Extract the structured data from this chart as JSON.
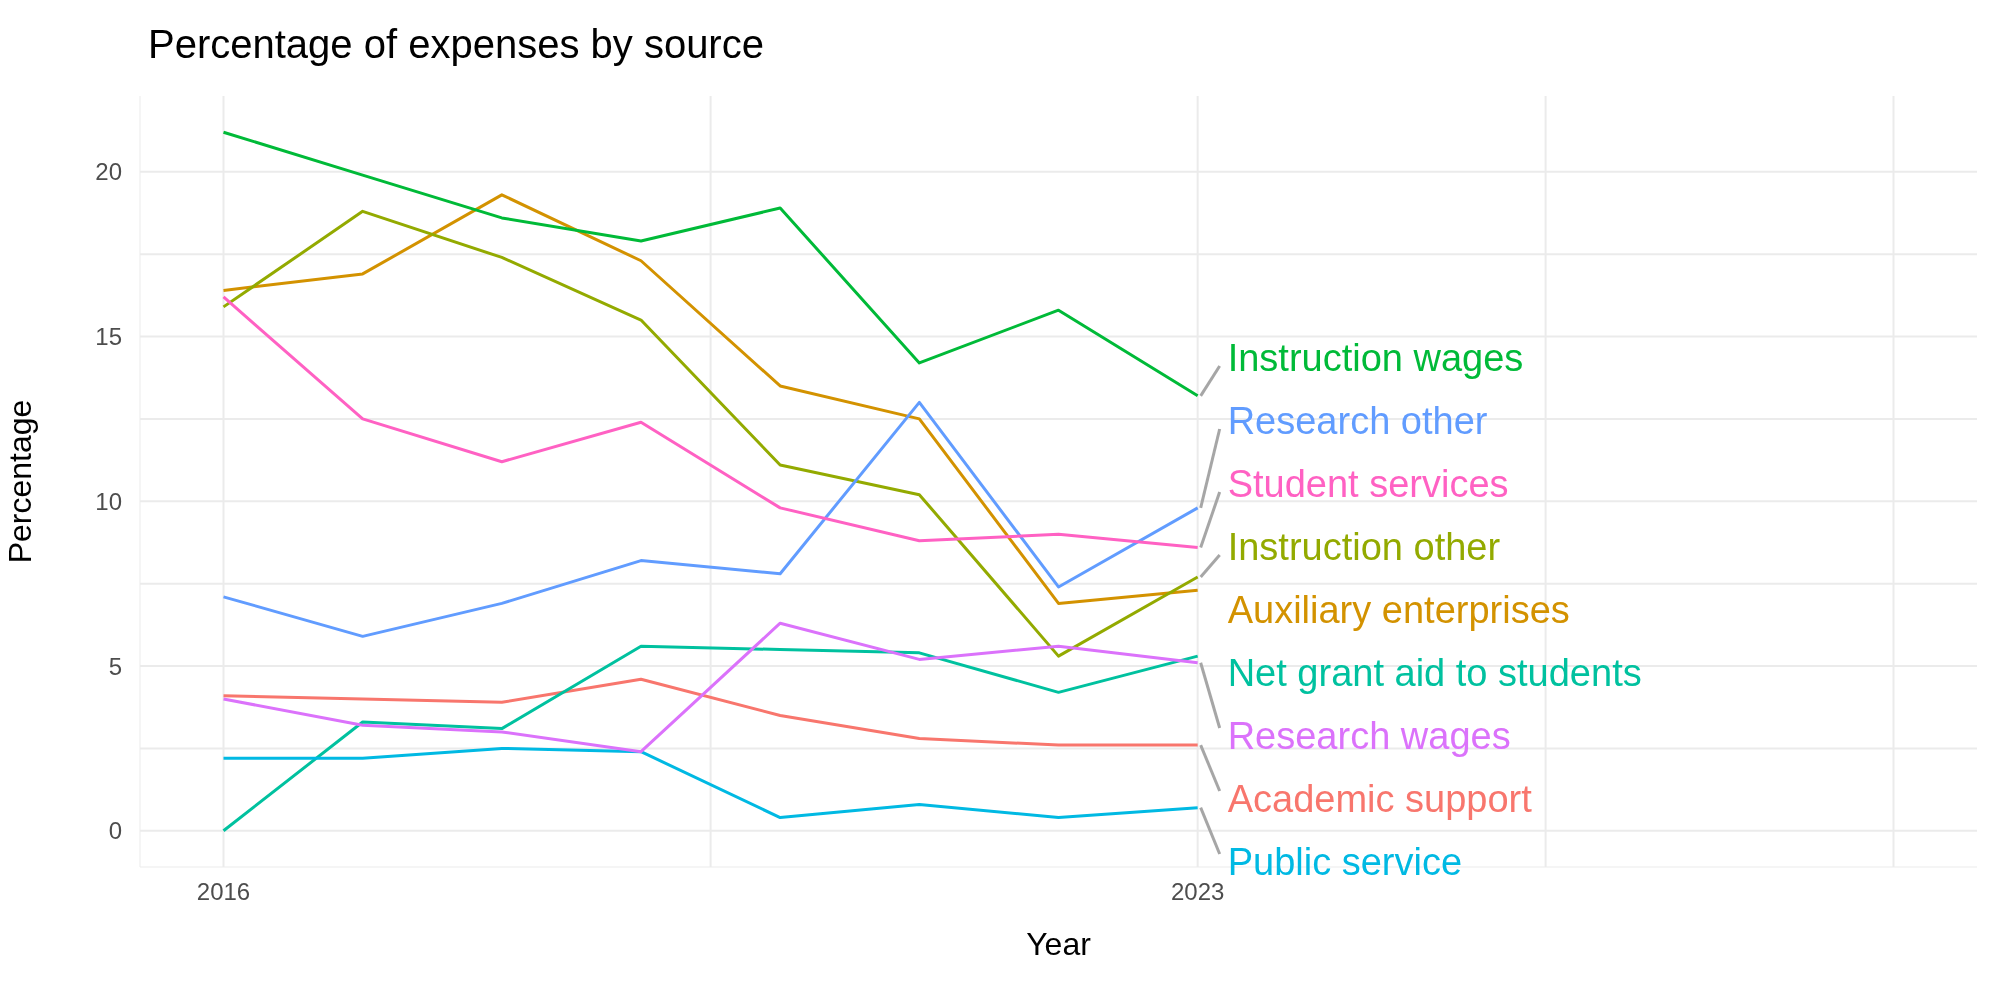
{
  "chart_data": {
    "type": "line",
    "title": "Percentage of expenses by source",
    "xlabel": "Year",
    "ylabel": "Percentage",
    "x": [
      2016,
      2017,
      2018,
      2019,
      2020,
      2021,
      2022,
      2023
    ],
    "xlim": [
      2015.4,
      2028.6
    ],
    "xticks": [
      2016,
      {
        "value": 2019.5,
        "label": null
      },
      2023,
      {
        "value": 2025.5,
        "label": null
      },
      {
        "value": 2028,
        "label": null
      }
    ],
    "ylim": [
      -1.1,
      22.3
    ],
    "yticks": [
      0,
      {
        "value": 2.5,
        "label": null
      },
      5,
      {
        "value": 7.5,
        "label": null
      },
      10,
      {
        "value": 12.5,
        "label": null
      },
      15,
      {
        "value": 17.5,
        "label": null
      },
      20
    ],
    "grid": true,
    "series": [
      {
        "name": "Academic support",
        "color": "#f8766d",
        "values": [
          4.1,
          4.0,
          3.9,
          4.6,
          3.5,
          2.8,
          2.6,
          2.6
        ]
      },
      {
        "name": "Auxiliary enterprises",
        "color": "#d39200",
        "values": [
          16.4,
          16.9,
          19.3,
          17.3,
          13.5,
          12.5,
          6.9,
          7.3
        ]
      },
      {
        "name": "Instruction other",
        "color": "#93aa00",
        "values": [
          15.9,
          18.8,
          17.4,
          15.5,
          11.1,
          10.2,
          5.3,
          7.7
        ]
      },
      {
        "name": "Instruction wages",
        "color": "#00ba38",
        "values": [
          21.2,
          19.9,
          18.6,
          17.9,
          18.9,
          14.2,
          15.8,
          13.2
        ]
      },
      {
        "name": "Net grant aid to students",
        "color": "#00c19f",
        "values": [
          0,
          3.3,
          3.1,
          5.6,
          5.5,
          5.4,
          4.2,
          5.3
        ]
      },
      {
        "name": "Public service",
        "color": "#00b9e3",
        "values": [
          2.2,
          2.2,
          2.5,
          2.4,
          0.4,
          0.8,
          0.4,
          0.7
        ]
      },
      {
        "name": "Research other",
        "color": "#619cff",
        "values": [
          7.1,
          5.9,
          6.9,
          8.2,
          7.8,
          13.0,
          7.4,
          9.8
        ]
      },
      {
        "name": "Research wages",
        "color": "#db72fb",
        "values": [
          4.0,
          3.2,
          3.0,
          2.4,
          6.3,
          5.2,
          5.6,
          5.1
        ]
      },
      {
        "name": "Student services",
        "color": "#ff61c3",
        "values": [
          16.2,
          12.5,
          11.2,
          12.4,
          9.8,
          8.8,
          9.0,
          8.6
        ]
      }
    ]
  }
}
